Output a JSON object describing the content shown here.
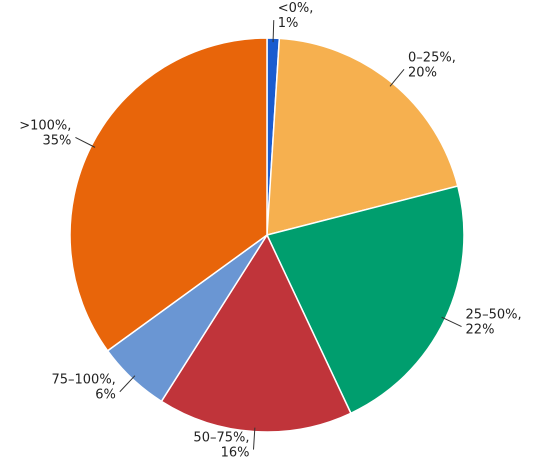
{
  "chart_data": {
    "type": "pie",
    "categories": [
      "<0%,",
      "0–25%,",
      "25–50%,",
      "50–75%,",
      "75–100%,",
      ">100%,"
    ],
    "values": [
      1,
      20,
      22,
      16,
      6,
      35
    ],
    "value_labels": [
      "1%",
      "20%",
      "22%",
      "16%",
      "6%",
      "35%"
    ],
    "colors": [
      "#1a5ccf",
      "#f6b04f",
      "#009e6e",
      "#c0343a",
      "#6a96d3",
      "#e8650a"
    ]
  }
}
